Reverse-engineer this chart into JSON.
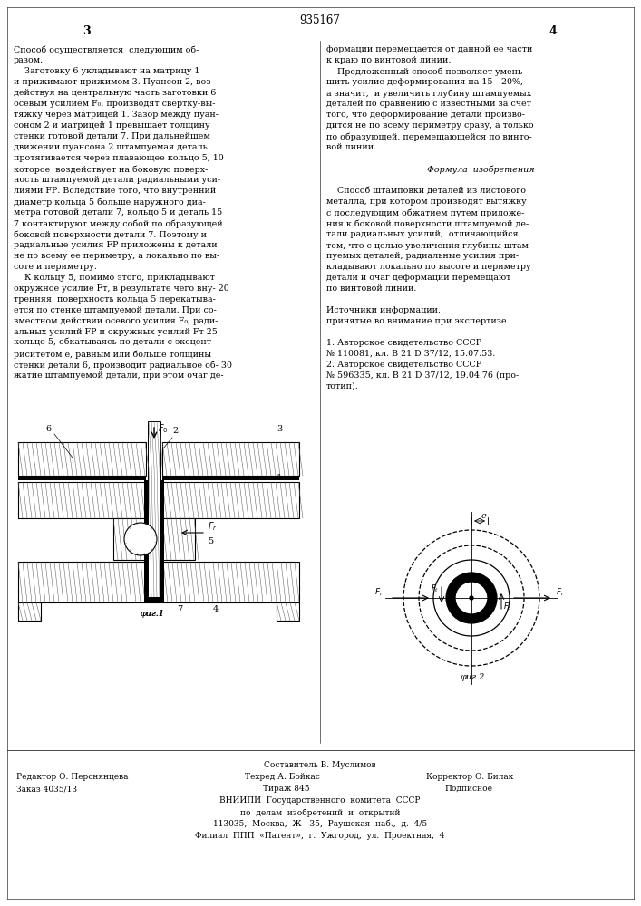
{
  "patent_number": "935167",
  "page_left": "3",
  "page_right": "4",
  "bg_color": "#ffffff",
  "col1_text": [
    "Способ осуществляется  следующим об-",
    "разом.",
    "    Заготовку 6 укладывают на матрицу 1",
    "и прижимают прижимом 3. Пуансон 2, воз-",
    "действуя на центральную часть заготовки 6",
    "осевым усилием F₀, производят свертку-вы-",
    "тяжку через матрицей 1. Зазор между пуан-",
    "соном 2 и матрицей 1 превышает толщину",
    "стенки готовой детали 7. При дальнейшем",
    "движении пуансона 2 штампуемая деталь",
    "протягивается через плавающее кольцо 5, 10",
    "которое  воздействует на боковую поверх-",
    "ность штампуемой детали радиальными уси-",
    "лиями FР. Вследствие того, что внутренний",
    "диаметр кольца 5 больше наружного диа-",
    "метра готовой детали 7, кольцо 5 и деталь 15",
    "7 контактируют между собой по образующей",
    "боковой поверхности детали 7. Поэтому и",
    "радиальные усилия FР приложены к детали",
    "не по всему ее периметру, а локально по вы-",
    "соте и периметру.",
    "    К кольцу 5, помимо этого, прикладывают",
    "окружное усилие Fт, в результате чего вну- 20",
    "тренняя  поверхность кольца 5 перекатыва-",
    "ется по стенке штампуемой детали. При со-",
    "вместном действии осевого усилия F₀, ради-",
    "альных усилий FР и окружных усилий Fт 25",
    "кольцо 5, обкатываясь по детали с эксцент-",
    "риситетом e, равным или больше толщины",
    "стенки детали 6, производит радиальное об- 30",
    "жатие штампуемой детали, при этом очаг де-"
  ],
  "col2_text": [
    "формации перемещается от данной ее части",
    "к краю по винтовой линии.",
    "    Предложенный способ позволяет умень-",
    "шить усилие деформирования на 15—20%,",
    "а значит,  и увеличить глубину штампуемых",
    "деталей по сравнению с известными за счет",
    "того, что деформирование детали произво-",
    "дится не по всему периметру сразу, а только",
    "по образующей, перемещающейся по винто-",
    "вой линии.",
    "",
    "Формула  изобретения",
    "",
    "    Способ штамповки деталей из листового",
    "металла, при котором производят вытяжку",
    "с последующим обжатием путем приложе-",
    "ния к боковой поверхности штампуемой де-",
    "тали радиальных усилий,  отличающийся",
    "тем, что с целью увеличения глубины штам-",
    "пуемых деталей, радиальные усилия при-",
    "кладывают локально по высоте и периметру",
    "детали и очаг деформации перемещают",
    "по винтовой линии.",
    "",
    "Источники информации,",
    "принятые во внимание при экспертизе",
    "",
    "1. Авторское свидетельство СССР",
    "№ 110081, кл. В 21 D 37/12, 15.07.53.",
    "2. Авторское свидетельство СССР",
    "№ 596335, кл. В 21 D 37/12, 19.04.76 (про-",
    "тотип)."
  ]
}
